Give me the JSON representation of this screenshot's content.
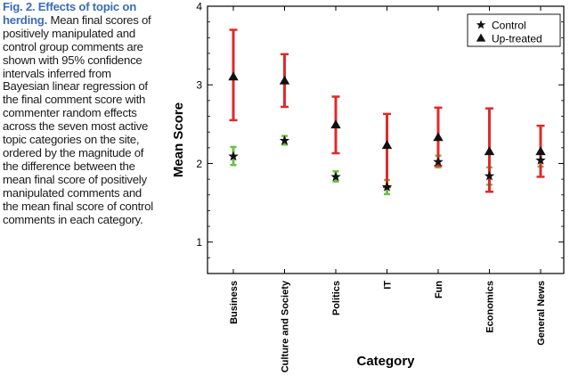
{
  "caption": {
    "title": "Fig. 2. Effects of topic on herding.",
    "body": "Mean final scores of positively manipulated and control group comments are shown with 95% confidence intervals inferred from Bayesian linear regression of the final comment score with commenter random effects across the seven most active topic categories on the site, ordered by the magnitude of the difference between the mean final score of positively manipulated comments and the mean final score of control comments in each category."
  },
  "chart_data": {
    "type": "scatter",
    "title": "",
    "xlabel": "Category",
    "ylabel": "Mean Score",
    "ylim": [
      0.6,
      4.0
    ],
    "yticks": [
      1,
      2,
      3,
      4
    ],
    "grid": false,
    "legend_position": "top-right",
    "categories": [
      "Business",
      "Culture and Society",
      "Politics",
      "IT",
      "Fun",
      "Economics",
      "General News"
    ],
    "series": [
      {
        "name": "Control",
        "marker": "star",
        "marker_color": "#111111",
        "error_color": "#6cc04a",
        "values": [
          2.09,
          2.29,
          1.83,
          1.7,
          2.02,
          1.84,
          2.04
        ],
        "lower": [
          1.98,
          2.24,
          1.77,
          1.61,
          1.95,
          1.73,
          1.96
        ],
        "upper": [
          2.21,
          2.35,
          1.9,
          1.79,
          2.1,
          1.95,
          2.13
        ]
      },
      {
        "name": "Up-treated",
        "marker": "triangle",
        "marker_color": "#111111",
        "error_color": "#e02a2a",
        "values": [
          3.1,
          3.05,
          2.49,
          2.23,
          2.33,
          2.15,
          2.15
        ],
        "lower": [
          2.55,
          2.72,
          2.13,
          1.7,
          1.97,
          1.64,
          1.83
        ],
        "upper": [
          3.7,
          3.39,
          2.85,
          2.63,
          2.71,
          2.7,
          2.48
        ]
      }
    ]
  }
}
